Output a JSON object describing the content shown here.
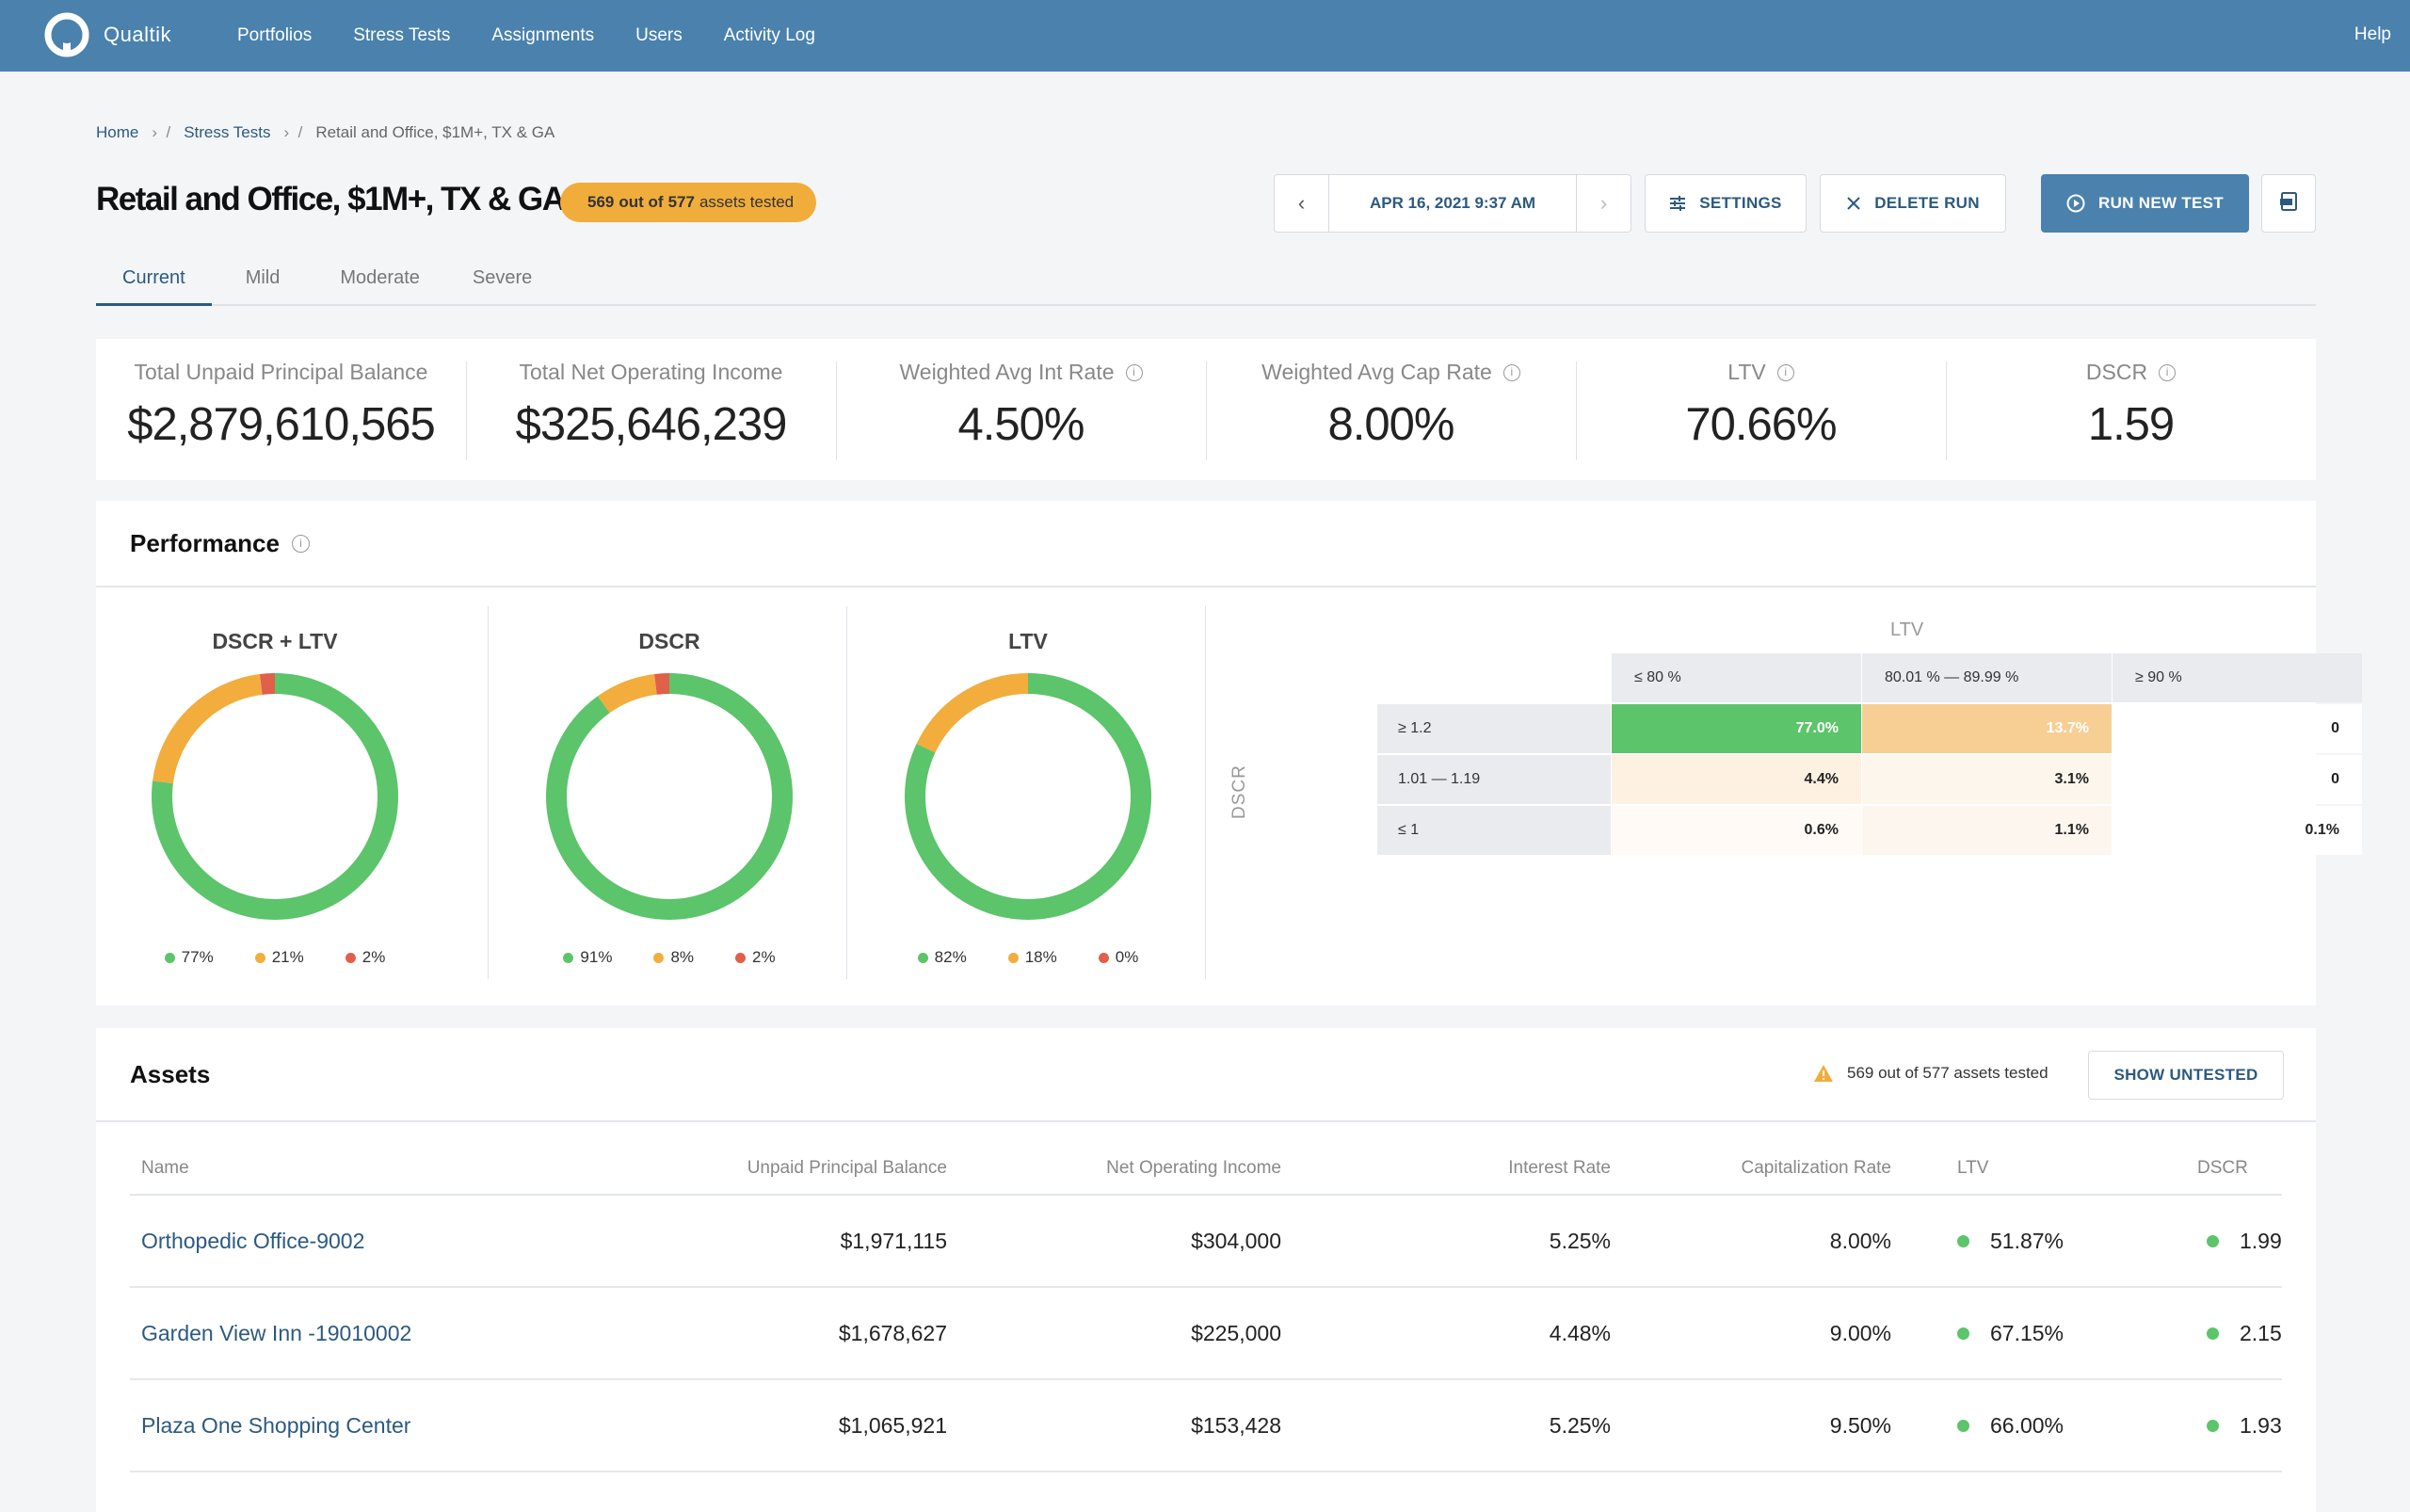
{
  "nav": {
    "brand": "Qualtik",
    "links": [
      "Portfolios",
      "Stress Tests",
      "Assignments",
      "Users",
      "Activity Log"
    ],
    "help": "Help"
  },
  "breadcrumb": {
    "home": "Home",
    "stress_tests": "Stress Tests",
    "current": "Retail and Office, $1M+, TX & GA"
  },
  "header": {
    "title": "Retail and Office, $1M+, TX & GA",
    "badge_tested": "569",
    "badge_mid": "out of",
    "badge_total": "577",
    "badge_suffix": "assets tested",
    "run_date": "APR 16, 2021 9:37 AM",
    "settings_label": "SETTINGS",
    "delete_label": "DELETE RUN",
    "run_new_label": "RUN NEW TEST"
  },
  "tabs": [
    "Current",
    "Mild",
    "Moderate",
    "Severe"
  ],
  "summary": [
    {
      "label": "Total Unpaid Principal Balance",
      "value": "$2,879,610,565",
      "info": false
    },
    {
      "label": "Total Net Operating Income",
      "value": "$325,646,239",
      "info": false
    },
    {
      "label": "Weighted Avg Int Rate",
      "value": "4.50%",
      "info": true
    },
    {
      "label": "Weighted Avg Cap Rate",
      "value": "8.00%",
      "info": true
    },
    {
      "label": "LTV",
      "value": "70.66%",
      "info": true
    },
    {
      "label": "DSCR",
      "value": "1.59",
      "info": true
    }
  ],
  "performance": {
    "title": "Performance",
    "colors": {
      "green": "#5cc46a",
      "orange": "#f2ad3c",
      "red": "#e0604a"
    },
    "donuts": [
      {
        "title": "DSCR + LTV",
        "segments": [
          77,
          21,
          2
        ],
        "labels": [
          "77%",
          "21%",
          "2%"
        ]
      },
      {
        "title": "DSCR",
        "segments": [
          91,
          8,
          2
        ],
        "labels": [
          "91%",
          "8%",
          "2%"
        ]
      },
      {
        "title": "LTV",
        "segments": [
          82,
          18,
          0
        ],
        "labels": [
          "82%",
          "18%",
          "0%"
        ]
      }
    ],
    "matrix": {
      "col_title": "LTV",
      "row_title": "DSCR",
      "columns": [
        "≤ 80 %",
        "80.01 % — 89.99 %",
        "≥ 90 %"
      ],
      "rows": [
        {
          "label": "≥ 1.2",
          "cells": [
            "77.0%",
            "13.7%",
            "0"
          ]
        },
        {
          "label": "1.01 — 1.19",
          "cells": [
            "4.4%",
            "3.1%",
            "0"
          ]
        },
        {
          "label": "≤ 1",
          "cells": [
            "0.6%",
            "1.1%",
            "0.1%"
          ]
        }
      ],
      "cell_colors": [
        [
          "#5cc46a",
          "#f7cf94",
          "#ffffff"
        ],
        [
          "#fdf1e1",
          "#fdf6ec",
          "#ffffff"
        ],
        [
          "#fffaf6",
          "#fdf6ee",
          "#ffffff"
        ]
      ]
    }
  },
  "assets": {
    "title": "Assets",
    "tested_note": "569 out of 577 assets tested",
    "show_untested_label": "SHOW UNTESTED",
    "columns": [
      "Name",
      "Unpaid Principal Balance",
      "Net Operating Income",
      "Interest Rate",
      "Capitalization Rate",
      "LTV",
      "DSCR"
    ],
    "rows": [
      {
        "name": "Orthopedic Office-9002",
        "upb": "$1,971,115",
        "noi": "$304,000",
        "ir": "5.25%",
        "cap": "8.00%",
        "ltv": "51.87%",
        "dscr": "1.99"
      },
      {
        "name": "Garden View Inn -19010002",
        "upb": "$1,678,627",
        "noi": "$225,000",
        "ir": "4.48%",
        "cap": "9.00%",
        "ltv": "67.15%",
        "dscr": "2.15"
      },
      {
        "name": "Plaza One Shopping Center",
        "upb": "$1,065,921",
        "noi": "$153,428",
        "ir": "5.25%",
        "cap": "9.50%",
        "ltv": "66.00%",
        "dscr": "1.93"
      }
    ]
  }
}
